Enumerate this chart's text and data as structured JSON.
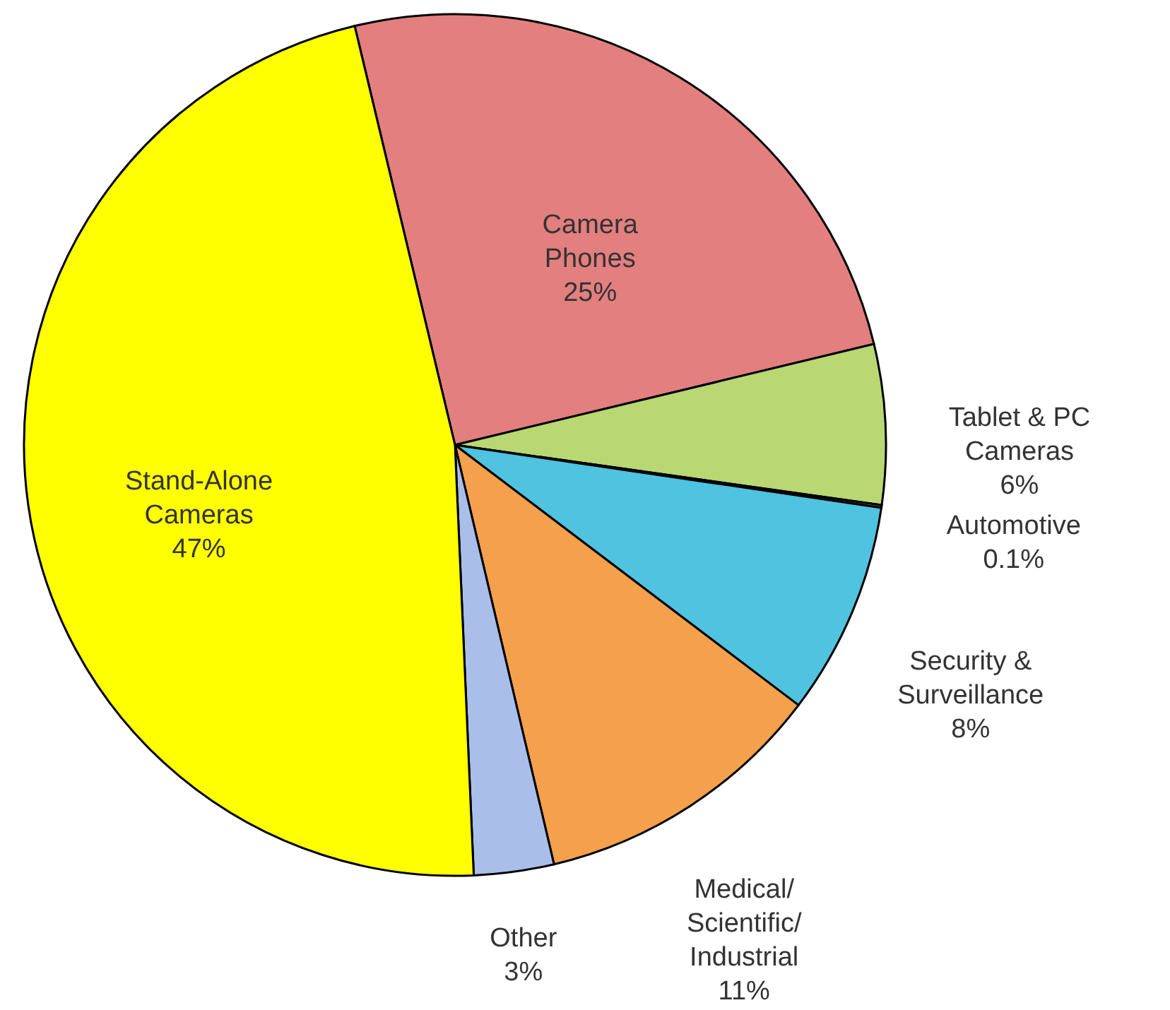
{
  "chart_data": {
    "type": "pie",
    "categories": [
      "Camera Phones",
      "Tablet & PC Cameras",
      "Automotive",
      "Security & Surveillance",
      "Medical/Scientific/Industrial",
      "Other",
      "Stand-Alone Cameras"
    ],
    "values": [
      25,
      6,
      0.1,
      8,
      11,
      3,
      47
    ],
    "colors": [
      "#e37f7f",
      "#b9d772",
      "#6a8a3a",
      "#4fc3e0",
      "#f5a04c",
      "#a9bfea",
      "#ffff00"
    ],
    "value_labels": [
      "25%",
      "6%",
      "0.1%",
      "8%",
      "11%",
      "3%",
      "47%"
    ]
  }
}
